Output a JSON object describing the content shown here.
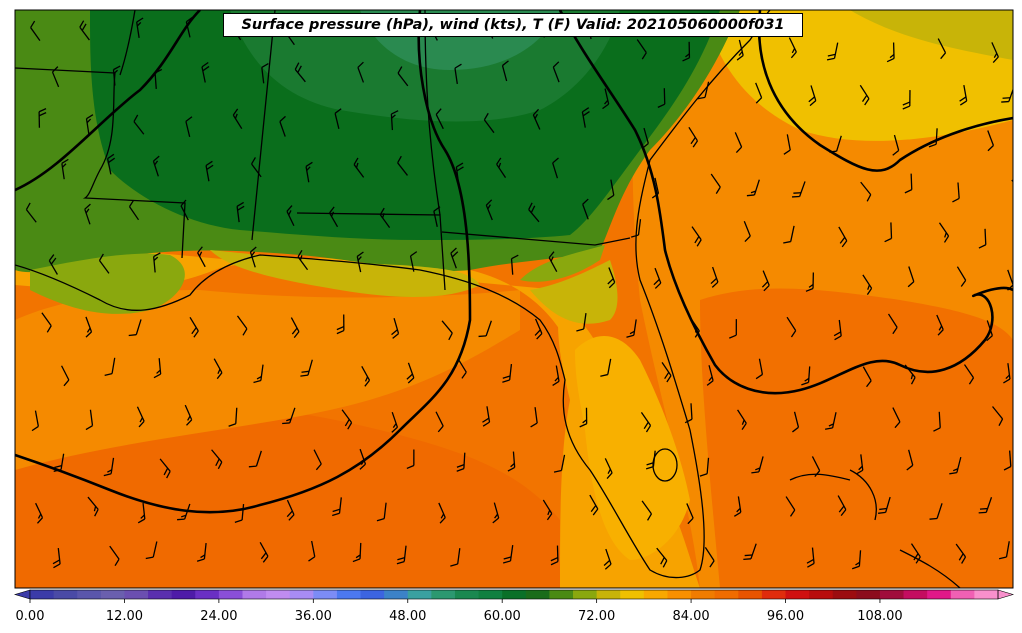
{
  "map": {
    "title": "Surface pressure (hPa), wind (kts), T (F) Valid: 202105060000f031",
    "colorbar": {
      "tick_labels": [
        "0.00",
        "12.00",
        "24.00",
        "36.00",
        "48.00",
        "60.00",
        "72.00",
        "84.00",
        "96.00",
        "108.00"
      ],
      "colors": [
        "#3b3ba8",
        "#4a4aa6",
        "#5a56ab",
        "#6a5fae",
        "#6b4fb0",
        "#5a2fae",
        "#4e1ba8",
        "#6a2fc4",
        "#8a4fd8",
        "#b07ae8",
        "#c08cf0",
        "#a88cf4",
        "#7c8cf6",
        "#4c78f0",
        "#3c64e0",
        "#3c82c8",
        "#3aa0a0",
        "#2c9870",
        "#1a8850",
        "#108040",
        "#0a7028",
        "#1a6c1a",
        "#4a8a14",
        "#8aa80e",
        "#c8b408",
        "#f0c000",
        "#f8a800",
        "#f89000",
        "#f07c00",
        "#f06c00",
        "#e85400",
        "#e02c0c",
        "#d01010",
        "#b80c0c",
        "#9c0c10",
        "#8c0c1c",
        "#a00c3c",
        "#c40c60",
        "#e01888",
        "#f060b4",
        "#f890cc"
      ]
    }
  }
}
